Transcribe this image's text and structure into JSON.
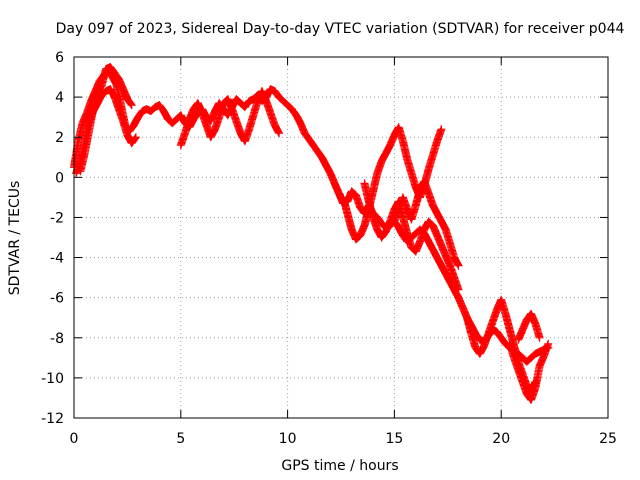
{
  "chart_data": {
    "type": "scatter",
    "title": "Day 097 of 2023, Sidereal Day-to-day VTEC variation (SDTVAR) for receiver p044",
    "xlabel": "GPS time / hours",
    "ylabel": "SDTVAR / TECUs",
    "xlim": [
      0,
      25
    ],
    "ylim": [
      -12,
      6
    ],
    "xticks": [
      0,
      5,
      10,
      15,
      20,
      25
    ],
    "yticks": [
      -12,
      -10,
      -8,
      -6,
      -4,
      -2,
      0,
      2,
      4,
      6
    ],
    "grid": true,
    "marker": "+",
    "series": [
      {
        "name": "SDTVAR",
        "color": "#ff0000",
        "tracks": [
          {
            "x": [
              0.0,
              0.2,
              0.4,
              0.6,
              0.8,
              1.0,
              1.2,
              1.4,
              1.6,
              1.8,
              2.0,
              2.2,
              2.4,
              2.6,
              2.8,
              3.0,
              3.2,
              3.4,
              3.6,
              3.8,
              4.0,
              4.2,
              4.4,
              4.6,
              4.8,
              5.0,
              5.2,
              5.4,
              5.6,
              5.8,
              6.0,
              6.2,
              6.4,
              6.6,
              6.8,
              7.0,
              7.2,
              7.4,
              7.6,
              7.8,
              8.0,
              8.2,
              8.4,
              8.6,
              8.8,
              9.0,
              9.2,
              9.4,
              9.6,
              9.8,
              10.0,
              10.2,
              10.4,
              10.6,
              10.8,
              11.0,
              11.2,
              11.4,
              11.6,
              11.8,
              12.0,
              12.2,
              12.4,
              12.6,
              12.8,
              13.0,
              13.2,
              13.4,
              13.6,
              13.8,
              14.0,
              14.2,
              14.4,
              14.6,
              14.8,
              15.0,
              15.2,
              15.4,
              15.6,
              15.8,
              16.0,
              16.2,
              16.4,
              16.6,
              16.8,
              17.0,
              17.2,
              17.4,
              17.6,
              17.8,
              18.0,
              18.2,
              18.4,
              18.6,
              18.8,
              19.0,
              19.2,
              19.4,
              19.6,
              19.8,
              20.0,
              20.2,
              20.4,
              20.6,
              20.8,
              21.0,
              21.2,
              21.4,
              21.6,
              21.8,
              22.0,
              22.2
            ],
            "y": [
              0.5,
              1.8,
              2.7,
              3.2,
              3.8,
              4.3,
              4.8,
              5.1,
              5.3,
              5.0,
              4.6,
              3.6,
              2.6,
              2.3,
              2.6,
              3.0,
              3.3,
              3.4,
              3.3,
              3.5,
              3.6,
              3.3,
              2.9,
              2.7,
              2.9,
              3.1,
              2.7,
              2.5,
              2.9,
              3.2,
              3.4,
              3.0,
              2.8,
              3.3,
              3.7,
              3.4,
              3.1,
              3.5,
              3.9,
              3.7,
              3.5,
              3.8,
              3.9,
              4.1,
              3.8,
              4.0,
              4.4,
              4.3,
              4.0,
              3.8,
              3.6,
              3.4,
              3.1,
              2.7,
              2.2,
              1.9,
              1.6,
              1.3,
              1.0,
              0.6,
              0.2,
              -0.3,
              -0.8,
              -1.3,
              -1.2,
              -0.7,
              -0.9,
              -1.5,
              -1.8,
              -1.4,
              -1.8,
              -2.0,
              -2.3,
              -2.5,
              -2.4,
              -2.2,
              -2.5,
              -2.9,
              -3.2,
              -3.0,
              -2.8,
              -2.6,
              -2.8,
              -3.2,
              -3.6,
              -4.0,
              -4.4,
              -4.8,
              -5.2,
              -5.6,
              -6.0,
              -6.5,
              -7.0,
              -7.4,
              -7.8,
              -8.1,
              -8.2,
              -7.9,
              -7.6,
              -7.7,
              -8.0,
              -8.3,
              -8.5,
              -8.7,
              -8.8,
              -9.0,
              -9.2,
              -9.0,
              -8.8,
              -8.7,
              -8.6,
              -8.5
            ]
          },
          {
            "x": [
              0.1,
              0.3,
              0.5,
              0.7,
              0.9,
              1.1,
              1.3,
              1.5,
              1.7,
              1.9,
              2.1,
              2.3,
              2.5,
              2.7,
              2.9
            ],
            "y": [
              0.2,
              0.8,
              1.8,
              2.8,
              3.3,
              3.7,
              4.1,
              4.3,
              4.4,
              4.0,
              3.4,
              2.8,
              2.1,
              1.7,
              2.0
            ]
          },
          {
            "x": [
              0.3,
              0.5,
              0.7,
              0.9,
              1.1,
              1.3,
              1.5,
              1.7,
              1.9,
              2.1,
              2.3,
              2.5,
              2.7
            ],
            "y": [
              0.3,
              1.2,
              2.3,
              3.4,
              4.2,
              4.6,
              5.4,
              5.5,
              5.2,
              4.9,
              4.4,
              3.9,
              3.6
            ]
          },
          {
            "x": [
              5.0,
              5.2,
              5.4,
              5.6,
              5.8,
              6.0,
              6.2,
              6.4,
              6.6,
              6.8,
              7.0,
              7.2,
              7.4,
              7.6,
              7.8,
              8.0,
              8.2,
              8.4,
              8.6,
              8.8,
              9.0,
              9.2,
              9.4,
              9.6
            ],
            "y": [
              1.6,
              2.2,
              2.9,
              3.4,
              3.7,
              3.2,
              2.6,
              2.0,
              2.4,
              3.0,
              3.7,
              3.9,
              3.4,
              2.8,
              2.2,
              1.8,
              2.4,
              3.1,
              3.8,
              4.3,
              3.8,
              3.2,
              2.6,
              2.2
            ]
          },
          {
            "x": [
              12.6,
              12.8,
              13.0,
              13.2,
              13.4,
              13.6,
              13.8,
              14.0,
              14.2,
              14.4,
              14.6,
              14.8,
              15.0,
              15.2,
              15.4,
              15.6,
              15.8,
              16.0,
              16.2,
              16.4,
              16.6,
              16.8,
              17.0,
              17.2
            ],
            "y": [
              -1.0,
              -1.8,
              -2.6,
              -3.1,
              -2.9,
              -2.4,
              -1.6,
              -0.7,
              0.2,
              0.8,
              1.2,
              1.6,
              2.1,
              2.5,
              1.8,
              0.9,
              0.2,
              -0.5,
              -1.0,
              -0.4,
              0.4,
              1.1,
              1.8,
              2.4
            ]
          },
          {
            "x": [
              13.6,
              13.8,
              14.0,
              14.2,
              14.4,
              14.6,
              14.8,
              15.0,
              15.2,
              15.4,
              15.6,
              15.8,
              16.0,
              16.2,
              16.4,
              16.6,
              16.8,
              17.0,
              17.2,
              17.4,
              17.6,
              17.8,
              18.0
            ],
            "y": [
              -0.3,
              -1.2,
              -2.0,
              -2.6,
              -3.0,
              -2.7,
              -2.2,
              -1.6,
              -1.2,
              -2.0,
              -2.8,
              -3.5,
              -3.7,
              -3.2,
              -2.6,
              -2.2,
              -2.4,
              -2.9,
              -3.4,
              -3.9,
              -4.4,
              -5.0,
              -5.6
            ]
          },
          {
            "x": [
              15.0,
              15.2,
              15.4,
              15.6,
              15.8,
              16.0,
              16.2,
              16.4,
              16.6,
              16.8,
              17.0,
              17.2,
              17.4,
              17.6,
              17.8,
              18.0
            ],
            "y": [
              -2.2,
              -1.6,
              -1.0,
              -1.6,
              -2.1,
              -1.4,
              -0.6,
              -0.2,
              -0.8,
              -1.4,
              -1.8,
              -2.2,
              -2.6,
              -3.3,
              -4.0,
              -4.4
            ]
          },
          {
            "x": [
              18.4,
              18.6,
              18.8,
              19.0,
              19.2,
              19.4,
              19.6,
              19.8,
              20.0,
              20.2,
              20.4,
              20.6,
              20.8,
              21.0,
              21.2,
              21.4,
              21.6
            ],
            "y": [
              -7.0,
              -7.8,
              -8.5,
              -8.8,
              -8.4,
              -7.8,
              -7.2,
              -6.6,
              -6.1,
              -6.8,
              -7.6,
              -8.4,
              -9.2,
              -9.8,
              -10.4,
              -10.6,
              -10.2
            ]
          },
          {
            "x": [
              20.4,
              20.6,
              20.8,
              21.0,
              21.2,
              21.4,
              21.6,
              21.8,
              22.0,
              22.2
            ],
            "y": [
              -8.3,
              -9.0,
              -9.6,
              -10.2,
              -10.8,
              -11.1,
              -10.5,
              -9.4,
              -8.9,
              -8.3
            ]
          },
          {
            "x": [
              20.8,
              21.0,
              21.2,
              21.4,
              21.6,
              21.8
            ],
            "y": [
              -8.1,
              -7.6,
              -7.1,
              -6.8,
              -7.3,
              -8.0
            ]
          }
        ]
      }
    ]
  }
}
